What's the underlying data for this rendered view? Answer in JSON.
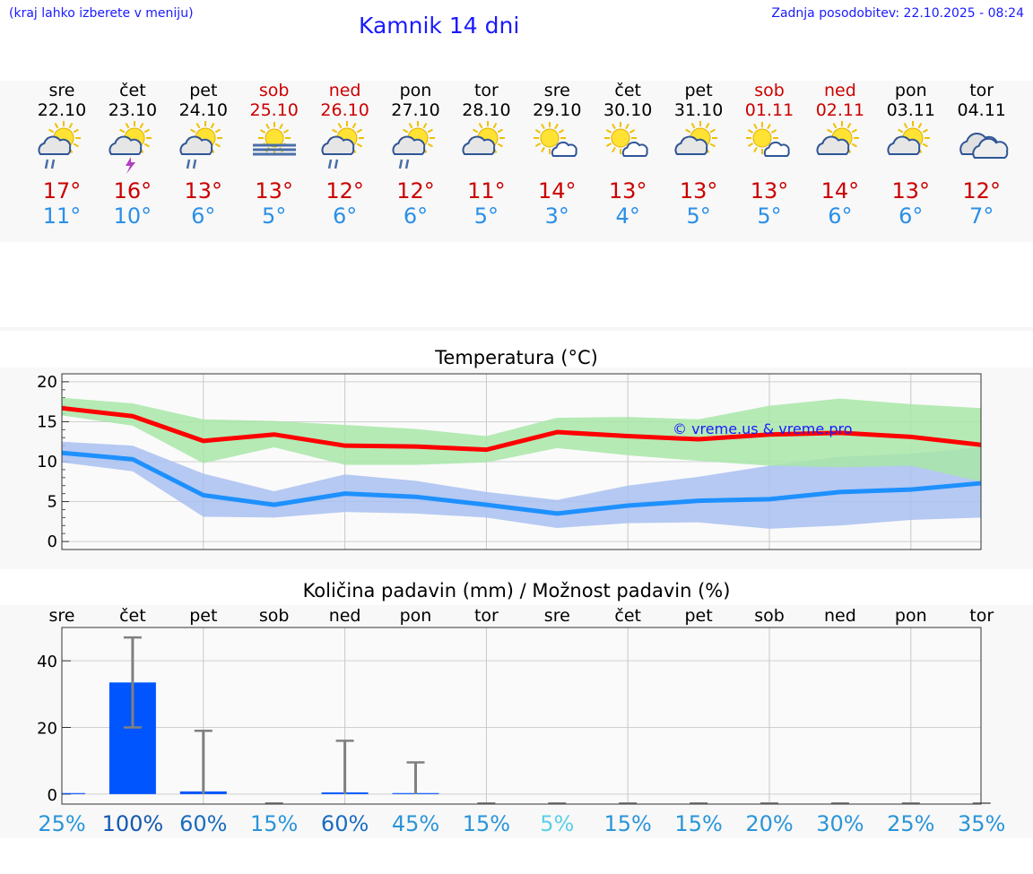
{
  "header": {
    "left_note": "(kraj lahko izberete v meniju)",
    "title": "Kamnik 14 dni",
    "updated": "Zadnja posodobitev: 22.10.2025 - 08:24"
  },
  "days": [
    {
      "weekday": "sre",
      "date": "22.10",
      "hi": "17°",
      "lo": "11°",
      "icon": "rain-sun",
      "weekend": false
    },
    {
      "weekday": "čet",
      "date": "23.10",
      "hi": "16°",
      "lo": "10°",
      "icon": "thunder-sun",
      "weekend": false
    },
    {
      "weekday": "pet",
      "date": "24.10",
      "hi": "13°",
      "lo": "6°",
      "icon": "rain-sun",
      "weekend": false
    },
    {
      "weekday": "sob",
      "date": "25.10",
      "hi": "13°",
      "lo": "5°",
      "icon": "fog-sun",
      "weekend": true
    },
    {
      "weekday": "ned",
      "date": "26.10",
      "hi": "12°",
      "lo": "6°",
      "icon": "rain-sun",
      "weekend": true
    },
    {
      "weekday": "pon",
      "date": "27.10",
      "hi": "12°",
      "lo": "6°",
      "icon": "rain-sun",
      "weekend": false
    },
    {
      "weekday": "tor",
      "date": "28.10",
      "hi": "11°",
      "lo": "5°",
      "icon": "cloud-sun",
      "weekend": false
    },
    {
      "weekday": "sre",
      "date": "29.10",
      "hi": "14°",
      "lo": "3°",
      "icon": "sun-cloud",
      "weekend": false
    },
    {
      "weekday": "čet",
      "date": "30.10",
      "hi": "13°",
      "lo": "4°",
      "icon": "sun-cloud",
      "weekend": false
    },
    {
      "weekday": "pet",
      "date": "31.10",
      "hi": "13°",
      "lo": "5°",
      "icon": "cloud-sun",
      "weekend": false
    },
    {
      "weekday": "sob",
      "date": "01.11",
      "hi": "13°",
      "lo": "5°",
      "icon": "sun-cloud",
      "weekend": true
    },
    {
      "weekday": "ned",
      "date": "02.11",
      "hi": "14°",
      "lo": "6°",
      "icon": "cloud-sun",
      "weekend": true
    },
    {
      "weekday": "pon",
      "date": "03.11",
      "hi": "13°",
      "lo": "6°",
      "icon": "cloud-sun",
      "weekend": false
    },
    {
      "weekday": "tor",
      "date": "04.11",
      "hi": "12°",
      "lo": "7°",
      "icon": "cloudy",
      "weekend": false
    }
  ],
  "colors": {
    "max_line": "#ff0000",
    "min_line": "#1e90ff",
    "max_band": "#a8e6a8",
    "min_band": "#a8c0f0",
    "bar": "#0055ff",
    "errbar": "#808080",
    "watermark": "#1a1aff"
  },
  "chart_data": [
    {
      "type": "line",
      "title": "Temperatura (°C)",
      "watermark": "© vreme.us & vreme.pro",
      "x": [
        0,
        1,
        2,
        3,
        4,
        5,
        6,
        7,
        8,
        9,
        10,
        11,
        12,
        13
      ],
      "ylim": [
        -1,
        21
      ],
      "yticks": [
        0,
        5,
        10,
        15,
        20
      ],
      "series": [
        {
          "name": "max",
          "values": [
            16.7,
            15.7,
            12.6,
            13.4,
            12.0,
            11.9,
            11.5,
            13.7,
            13.2,
            12.8,
            13.4,
            13.6,
            13.1,
            12.1
          ],
          "band_low": [
            15.8,
            14.5,
            9.8,
            11.8,
            9.6,
            9.6,
            9.9,
            11.7,
            10.8,
            10.1,
            9.5,
            9.3,
            9.5,
            7.5
          ],
          "band_high": [
            18.0,
            17.3,
            15.3,
            15.1,
            14.6,
            14.1,
            13.2,
            15.5,
            15.6,
            15.3,
            17.0,
            17.9,
            17.2,
            16.7
          ]
        },
        {
          "name": "min",
          "values": [
            11.1,
            10.3,
            5.8,
            4.6,
            6.0,
            5.6,
            4.6,
            3.5,
            4.5,
            5.1,
            5.3,
            6.2,
            6.5,
            7.3
          ],
          "band_low": [
            9.9,
            8.8,
            3.1,
            3.0,
            3.7,
            3.5,
            3.0,
            1.7,
            2.3,
            2.4,
            1.6,
            2.0,
            2.7,
            3.0
          ],
          "band_high": [
            12.5,
            12.0,
            8.5,
            6.3,
            8.4,
            7.6,
            6.2,
            5.2,
            7.0,
            8.1,
            9.5,
            10.6,
            11.0,
            11.8
          ]
        }
      ]
    },
    {
      "type": "bar",
      "title": "Količina padavin (mm) / Možnost padavin (%)",
      "categories": [
        "sre",
        "čet",
        "pet",
        "sob",
        "ned",
        "pon",
        "tor",
        "sre",
        "čet",
        "pet",
        "sob",
        "ned",
        "pon",
        "tor"
      ],
      "values": [
        0.3,
        33.5,
        0.8,
        0,
        0.5,
        0.3,
        0,
        0,
        0,
        0,
        0,
        0,
        0,
        0
      ],
      "err_low": [
        0,
        20,
        0,
        0,
        0,
        0,
        0,
        0,
        0,
        0,
        0,
        0,
        0,
        0
      ],
      "err_high": [
        0,
        47,
        19,
        0,
        16,
        9.5,
        0,
        0,
        0,
        0,
        0,
        0,
        0,
        0
      ],
      "ylim": [
        -3,
        50
      ],
      "yticks": [
        0,
        20,
        40
      ],
      "probability": [
        "25%",
        "100%",
        "60%",
        "15%",
        "60%",
        "45%",
        "15%",
        "5%",
        "15%",
        "15%",
        "20%",
        "30%",
        "25%",
        "35%"
      ],
      "probability_colors": [
        "#2a95d8",
        "#1458b0",
        "#1a6cc0",
        "#2a95d8",
        "#1a6cc0",
        "#2a95d8",
        "#2a95d8",
        "#5ad0e8",
        "#2a95d8",
        "#2a95d8",
        "#2a95d8",
        "#2a95d8",
        "#2a95d8",
        "#2a95d8"
      ]
    }
  ]
}
